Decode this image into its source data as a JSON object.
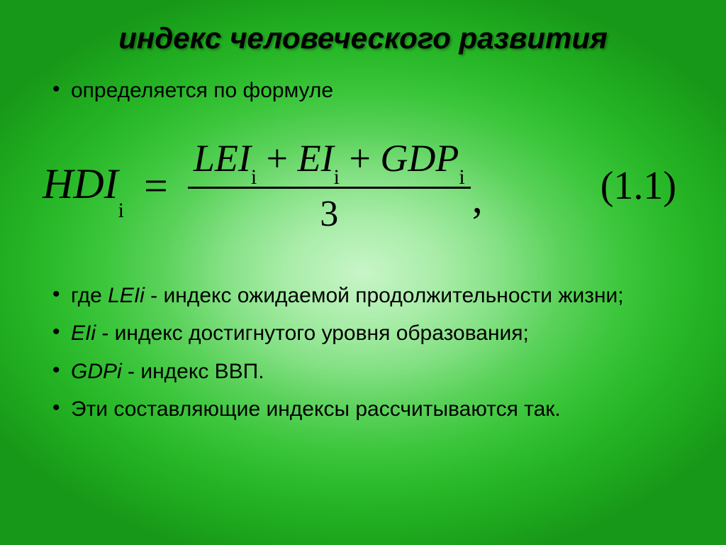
{
  "slide": {
    "title": "индекс человеческого развития",
    "title_fontsize": 42,
    "title_color": "#000000",
    "bullet_fontsize": 30,
    "bullet_color": "#000000",
    "background_gradient": {
      "type": "radial",
      "stops": [
        "#c8f5c8",
        "#a8eca8",
        "#85e185",
        "#5bd25b",
        "#3cc63c",
        "#28b828",
        "#1ea81e",
        "#189818"
      ]
    },
    "bullets": {
      "intro": "определяется по формуле",
      "lei_label": "LEIi",
      "lei_text": " - индекс ожидаемой продолжительности жизни;",
      "ei_label": "EIi",
      "ei_text": " - индекс достигнутого уровня образования;",
      "gdp_label": "GDPi",
      "gdp_text": " - индекс ВВП.",
      "outro": "Эти составляющие индексы рассчитываются так.",
      "where_word": "где "
    }
  },
  "formula": {
    "lhs": "HDI",
    "lhs_sub": "i",
    "eq": "=",
    "numerator": {
      "t1": "LEI",
      "t1_sub": "i",
      "plus1": " + ",
      "t2": "EI",
      "t2_sub": "i",
      "plus2": " + ",
      "t3": "GDP",
      "t3_sub": "i"
    },
    "denominator": "3",
    "trailing_comma": ",",
    "equation_number": "(1.1)",
    "font_family": "Times New Roman",
    "font_style": "italic",
    "lhs_fontsize": 60,
    "numerator_fontsize": 54,
    "denominator_fontsize": 52,
    "bar_color": "#000000"
  }
}
